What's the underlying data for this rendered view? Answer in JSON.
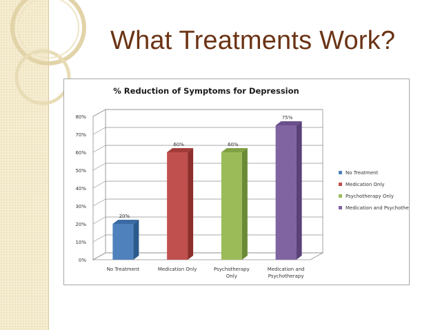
{
  "slide": {
    "title": "What Treatments Work?"
  },
  "colors": {
    "title": "#6b3314",
    "band": "#f6ecd0"
  },
  "chart_data": {
    "type": "bar",
    "title": "% Reduction of Symptoms for Depression",
    "categories": [
      [
        "No Treatment"
      ],
      [
        "Medication Only"
      ],
      [
        "Psychotherapy",
        "Only"
      ],
      [
        "Medication and",
        "Psychotherapy"
      ]
    ],
    "legend": [
      "No Treatment",
      "Medication Only",
      "Psychotherapy Only",
      "Medication and Psychotherapy"
    ],
    "values": [
      20,
      60,
      60,
      75
    ],
    "data_labels": [
      "20%",
      "60%",
      "60%",
      "75%"
    ],
    "colors": [
      "#4f81bd",
      "#c0504d",
      "#9bbb59",
      "#8064a2"
    ],
    "side_colors": [
      "#2c5a8c",
      "#8c2e2b",
      "#6b8a35",
      "#5a4178"
    ],
    "top_colors": [
      "#3a6aa3",
      "#a23c39",
      "#7fa043",
      "#6a4f8c"
    ],
    "yticks": [
      "0%",
      "10%",
      "20%",
      "30%",
      "40%",
      "50%",
      "60%",
      "70%",
      "80%"
    ],
    "ylim": [
      0,
      80
    ],
    "grid": true,
    "legend_position": "right"
  }
}
